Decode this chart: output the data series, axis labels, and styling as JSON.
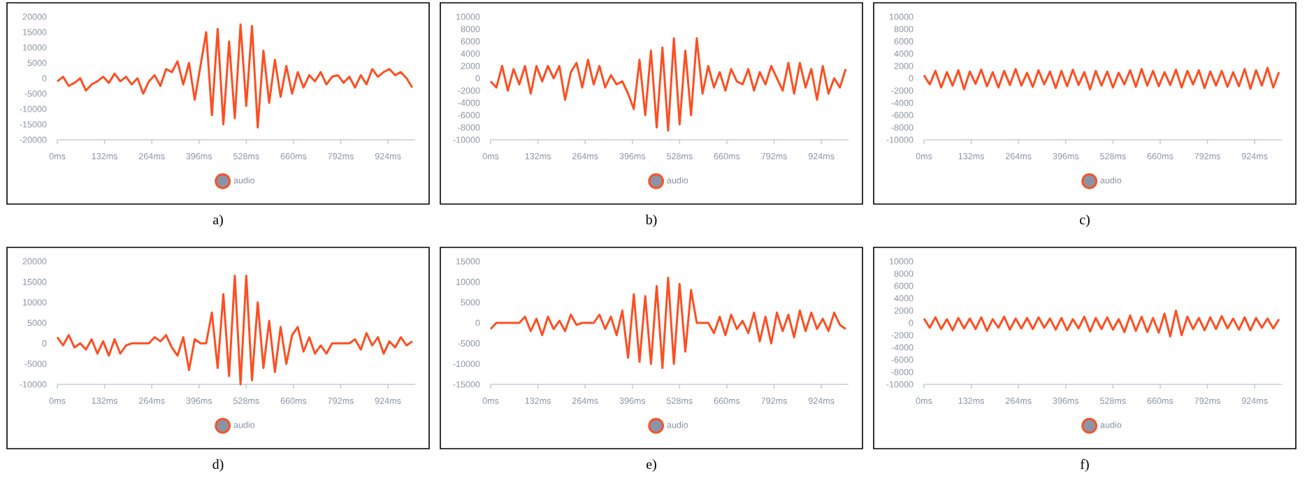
{
  "chart_data": [
    {
      "type": "line",
      "legend": "bottom",
      "line_style": "solid",
      "annotations": [
        "a)"
      ],
      "xlim": [
        0,
        1000
      ],
      "ylim": [
        -20000,
        20000
      ],
      "xticks": [
        {
          "value": 0,
          "label": "0ms"
        },
        {
          "value": 132,
          "label": "132ms"
        },
        {
          "value": 264,
          "label": "264ms"
        },
        {
          "value": 396,
          "label": "396ms"
        },
        {
          "value": 528,
          "label": "528ms"
        },
        {
          "value": 660,
          "label": "660ms"
        },
        {
          "value": 792,
          "label": "792ms"
        },
        {
          "value": 924,
          "label": "924ms"
        }
      ],
      "yticks": [
        -20000,
        -15000,
        -10000,
        -5000,
        0,
        5000,
        10000,
        15000,
        20000
      ],
      "x": [
        0,
        16,
        32,
        48,
        64,
        80,
        96,
        112,
        128,
        144,
        160,
        176,
        192,
        208,
        224,
        240,
        256,
        272,
        288,
        304,
        320,
        336,
        352,
        368,
        384,
        400,
        416,
        432,
        448,
        464,
        480,
        496,
        512,
        528,
        544,
        560,
        576,
        592,
        608,
        624,
        640,
        656,
        672,
        688,
        704,
        720,
        736,
        752,
        768,
        784,
        800,
        816,
        832,
        848,
        864,
        880,
        896,
        912,
        928,
        944,
        960,
        976,
        992
      ],
      "series": [
        {
          "name": "audio",
          "color": "#fd4f22",
          "values": [
            -1000,
            500,
            -2500,
            -1500,
            0,
            -4000,
            -2000,
            -1000,
            500,
            -1500,
            1500,
            -1000,
            500,
            -2000,
            0,
            -5000,
            -1000,
            1000,
            -2500,
            3000,
            2000,
            5500,
            -2000,
            5000,
            -7000,
            4000,
            15000,
            -12000,
            16000,
            -15000,
            12000,
            -13000,
            17500,
            -9000,
            17000,
            -16000,
            9000,
            -8000,
            6000,
            -6000,
            4000,
            -5000,
            2000,
            -3000,
            1000,
            -1000,
            2000,
            -2000,
            500,
            1000,
            -1500,
            500,
            -3000,
            1000,
            -2000,
            3000,
            500,
            2000,
            3000,
            1000,
            2000,
            0,
            -3000
          ]
        }
      ]
    },
    {
      "type": "line",
      "legend": "bottom",
      "line_style": "solid",
      "annotations": [
        "b)"
      ],
      "xlim": [
        0,
        1000
      ],
      "ylim": [
        -10000,
        10000
      ],
      "xticks": [
        {
          "value": 0,
          "label": "0ms"
        },
        {
          "value": 132,
          "label": "132ms"
        },
        {
          "value": 264,
          "label": "264ms"
        },
        {
          "value": 396,
          "label": "396ms"
        },
        {
          "value": 528,
          "label": "528ms"
        },
        {
          "value": 660,
          "label": "660ms"
        },
        {
          "value": 792,
          "label": "792ms"
        },
        {
          "value": 924,
          "label": "924ms"
        }
      ],
      "yticks": [
        -10000,
        -8000,
        -6000,
        -4000,
        -2000,
        0,
        2000,
        4000,
        6000,
        8000,
        10000
      ],
      "x": [
        0,
        16,
        32,
        48,
        64,
        80,
        96,
        112,
        128,
        144,
        160,
        176,
        192,
        208,
        224,
        240,
        256,
        272,
        288,
        304,
        320,
        336,
        352,
        368,
        384,
        400,
        416,
        432,
        448,
        464,
        480,
        496,
        512,
        528,
        544,
        560,
        576,
        592,
        608,
        624,
        640,
        656,
        672,
        688,
        704,
        720,
        736,
        752,
        768,
        784,
        800,
        816,
        832,
        848,
        864,
        880,
        896,
        912,
        928,
        944,
        960,
        976,
        992
      ],
      "series": [
        {
          "name": "audio",
          "color": "#fd4f22",
          "values": [
            -500,
            -1500,
            2000,
            -2000,
            1500,
            -1000,
            2000,
            -2500,
            2000,
            -500,
            2000,
            0,
            2000,
            -3500,
            1000,
            2500,
            -1500,
            3000,
            -1000,
            2000,
            -1500,
            500,
            -1000,
            -500,
            -2500,
            -5000,
            3000,
            -6000,
            4500,
            -8000,
            5000,
            -8500,
            6500,
            -7500,
            4500,
            -6000,
            6500,
            -2500,
            2000,
            -1500,
            1000,
            -2000,
            1500,
            -500,
            -1000,
            1500,
            -2000,
            1000,
            -1000,
            2000,
            0,
            -2000,
            2500,
            -2500,
            2500,
            -1500,
            1500,
            -3500,
            2000,
            -2500,
            0,
            -1500,
            1500
          ]
        }
      ]
    },
    {
      "type": "line",
      "legend": "bottom",
      "line_style": "solid",
      "annotations": [
        "c)"
      ],
      "xlim": [
        0,
        1000
      ],
      "ylim": [
        -10000,
        10000
      ],
      "xticks": [
        {
          "value": 0,
          "label": "0ms"
        },
        {
          "value": 132,
          "label": "132ms"
        },
        {
          "value": 264,
          "label": "264ms"
        },
        {
          "value": 396,
          "label": "396ms"
        },
        {
          "value": 528,
          "label": "528ms"
        },
        {
          "value": 660,
          "label": "660ms"
        },
        {
          "value": 792,
          "label": "792ms"
        },
        {
          "value": 924,
          "label": "924ms"
        }
      ],
      "yticks": [
        -10000,
        -8000,
        -6000,
        -4000,
        -2000,
        0,
        2000,
        4000,
        6000,
        8000,
        10000
      ],
      "x": [
        0,
        16,
        32,
        48,
        64,
        80,
        96,
        112,
        128,
        144,
        160,
        176,
        192,
        208,
        224,
        240,
        256,
        272,
        288,
        304,
        320,
        336,
        352,
        368,
        384,
        400,
        416,
        432,
        448,
        464,
        480,
        496,
        512,
        528,
        544,
        560,
        576,
        592,
        608,
        624,
        640,
        656,
        672,
        688,
        704,
        720,
        736,
        752,
        768,
        784,
        800,
        816,
        832,
        848,
        864,
        880,
        896,
        912,
        928,
        944,
        960,
        976,
        992
      ],
      "series": [
        {
          "name": "audio",
          "color": "#fd4f22",
          "values": [
            500,
            -1000,
            1200,
            -1500,
            1000,
            -1200,
            1300,
            -1800,
            1100,
            -900,
            1400,
            -1300,
            1000,
            -1500,
            1200,
            -1100,
            1500,
            -1200,
            900,
            -1400,
            1300,
            -1000,
            1100,
            -1600,
            1200,
            -1300,
            1400,
            -1100,
            1000,
            -1800,
            1200,
            -1200,
            1100,
            -1500,
            900,
            -1000,
            1300,
            -1400,
            1500,
            -1200,
            1200,
            -1300,
            1000,
            -1100,
            1400,
            -1500,
            1200,
            -1000,
            1300,
            -1600,
            1100,
            -1200,
            1200,
            -1400,
            1000,
            -1300,
            1500,
            -1700,
            1300,
            -1200,
            1700,
            -1500,
            1000
          ]
        }
      ]
    },
    {
      "type": "line",
      "legend": "bottom",
      "line_style": "solid",
      "annotations": [
        "d)"
      ],
      "xlim": [
        0,
        1000
      ],
      "ylim": [
        -10000,
        20000
      ],
      "xticks": [
        {
          "value": 0,
          "label": "0ms"
        },
        {
          "value": 132,
          "label": "132ms"
        },
        {
          "value": 264,
          "label": "264ms"
        },
        {
          "value": 396,
          "label": "396ms"
        },
        {
          "value": 528,
          "label": "528ms"
        },
        {
          "value": 660,
          "label": "660ms"
        },
        {
          "value": 792,
          "label": "792ms"
        },
        {
          "value": 924,
          "label": "924ms"
        }
      ],
      "yticks": [
        -10000,
        -5000,
        0,
        5000,
        10000,
        15000,
        20000
      ],
      "x": [
        0,
        16,
        32,
        48,
        64,
        80,
        96,
        112,
        128,
        144,
        160,
        176,
        192,
        208,
        224,
        240,
        256,
        272,
        288,
        304,
        320,
        336,
        352,
        368,
        384,
        400,
        416,
        432,
        448,
        464,
        480,
        496,
        512,
        528,
        544,
        560,
        576,
        592,
        608,
        624,
        640,
        656,
        672,
        688,
        704,
        720,
        736,
        752,
        768,
        784,
        800,
        816,
        832,
        848,
        864,
        880,
        896,
        912,
        928,
        944,
        960,
        976,
        992
      ],
      "series": [
        {
          "name": "audio",
          "color": "#fd4f22",
          "values": [
            1500,
            -500,
            2000,
            -1000,
            0,
            -1500,
            1000,
            -2500,
            500,
            -3000,
            1000,
            -2500,
            -500,
            0,
            0,
            0,
            0,
            1500,
            500,
            2000,
            -1000,
            -3000,
            1500,
            -6500,
            1000,
            0,
            0,
            7500,
            -6000,
            12000,
            -8000,
            16500,
            -10000,
            16500,
            -9000,
            10000,
            -6000,
            5500,
            -7000,
            4000,
            -5000,
            2000,
            4000,
            -2000,
            1500,
            -2500,
            -500,
            -2500,
            0,
            0,
            0,
            0,
            1000,
            -1500,
            2500,
            -500,
            1500,
            -2500,
            500,
            -1000,
            1500,
            -500,
            500
          ]
        }
      ]
    },
    {
      "type": "line",
      "legend": "bottom",
      "line_style": "solid",
      "annotations": [
        "e)"
      ],
      "xlim": [
        0,
        1000
      ],
      "ylim": [
        -15000,
        15000
      ],
      "xticks": [
        {
          "value": 0,
          "label": "0ms"
        },
        {
          "value": 132,
          "label": "132ms"
        },
        {
          "value": 264,
          "label": "264ms"
        },
        {
          "value": 396,
          "label": "396ms"
        },
        {
          "value": 528,
          "label": "528ms"
        },
        {
          "value": 660,
          "label": "660ms"
        },
        {
          "value": 792,
          "label": "792ms"
        },
        {
          "value": 924,
          "label": "924ms"
        }
      ],
      "yticks": [
        -15000,
        -10000,
        -5000,
        0,
        5000,
        10000,
        15000
      ],
      "x": [
        0,
        16,
        32,
        48,
        64,
        80,
        96,
        112,
        128,
        144,
        160,
        176,
        192,
        208,
        224,
        240,
        256,
        272,
        288,
        304,
        320,
        336,
        352,
        368,
        384,
        400,
        416,
        432,
        448,
        464,
        480,
        496,
        512,
        528,
        544,
        560,
        576,
        592,
        608,
        624,
        640,
        656,
        672,
        688,
        704,
        720,
        736,
        752,
        768,
        784,
        800,
        816,
        832,
        848,
        864,
        880,
        896,
        912,
        928,
        944,
        960,
        976,
        992
      ],
      "series": [
        {
          "name": "audio",
          "color": "#fd4f22",
          "values": [
            -1500,
            0,
            0,
            0,
            0,
            0,
            1500,
            -2000,
            1000,
            -3000,
            1500,
            -1500,
            500,
            -2000,
            2000,
            -500,
            0,
            0,
            0,
            2000,
            -1500,
            1500,
            -3000,
            3000,
            -8500,
            7000,
            -9500,
            6500,
            -10000,
            9000,
            -11000,
            11000,
            -10000,
            9500,
            -7000,
            8000,
            0,
            0,
            0,
            -2500,
            1500,
            -3000,
            2000,
            -1500,
            500,
            -2500,
            2500,
            -4500,
            1500,
            -5000,
            2500,
            -2000,
            2000,
            -3500,
            3000,
            -2000,
            2500,
            -1500,
            1000,
            -2000,
            2500,
            -500,
            -1500
          ]
        }
      ]
    },
    {
      "type": "line",
      "legend": "bottom",
      "line_style": "solid",
      "annotations": [
        "f)"
      ],
      "xlim": [
        0,
        1000
      ],
      "ylim": [
        -10000,
        10000
      ],
      "xticks": [
        {
          "value": 0,
          "label": "0ms"
        },
        {
          "value": 132,
          "label": "132ms"
        },
        {
          "value": 264,
          "label": "264ms"
        },
        {
          "value": 396,
          "label": "396ms"
        },
        {
          "value": 528,
          "label": "528ms"
        },
        {
          "value": 660,
          "label": "660ms"
        },
        {
          "value": 792,
          "label": "792ms"
        },
        {
          "value": 924,
          "label": "924ms"
        }
      ],
      "yticks": [
        -10000,
        -8000,
        -6000,
        -4000,
        -2000,
        0,
        2000,
        4000,
        6000,
        8000,
        10000
      ],
      "x": [
        0,
        16,
        32,
        48,
        64,
        80,
        96,
        112,
        128,
        144,
        160,
        176,
        192,
        208,
        224,
        240,
        256,
        272,
        288,
        304,
        320,
        336,
        352,
        368,
        384,
        400,
        416,
        432,
        448,
        464,
        480,
        496,
        512,
        528,
        544,
        560,
        576,
        592,
        608,
        624,
        640,
        656,
        672,
        688,
        704,
        720,
        736,
        752,
        768,
        784,
        800,
        816,
        832,
        848,
        864,
        880,
        896,
        912,
        928,
        944,
        960,
        976,
        992
      ],
      "series": [
        {
          "name": "audio",
          "color": "#fd4f22",
          "values": [
            700,
            -800,
            900,
            -1000,
            600,
            -1200,
            800,
            -900,
            700,
            -1000,
            900,
            -1300,
            600,
            -800,
            1000,
            -1100,
            700,
            -900,
            800,
            -1000,
            900,
            -800,
            700,
            -1100,
            800,
            -1200,
            600,
            -900,
            1000,
            -1400,
            800,
            -1000,
            900,
            -1100,
            600,
            -1500,
            1200,
            -1300,
            1000,
            -1500,
            800,
            -1600,
            1500,
            -2200,
            2000,
            -2000,
            1000,
            -1000,
            800,
            -1200,
            900,
            -1000,
            1100,
            -900,
            700,
            -1100,
            900,
            -1200,
            800,
            -800,
            700,
            -900,
            600
          ]
        }
      ]
    }
  ]
}
